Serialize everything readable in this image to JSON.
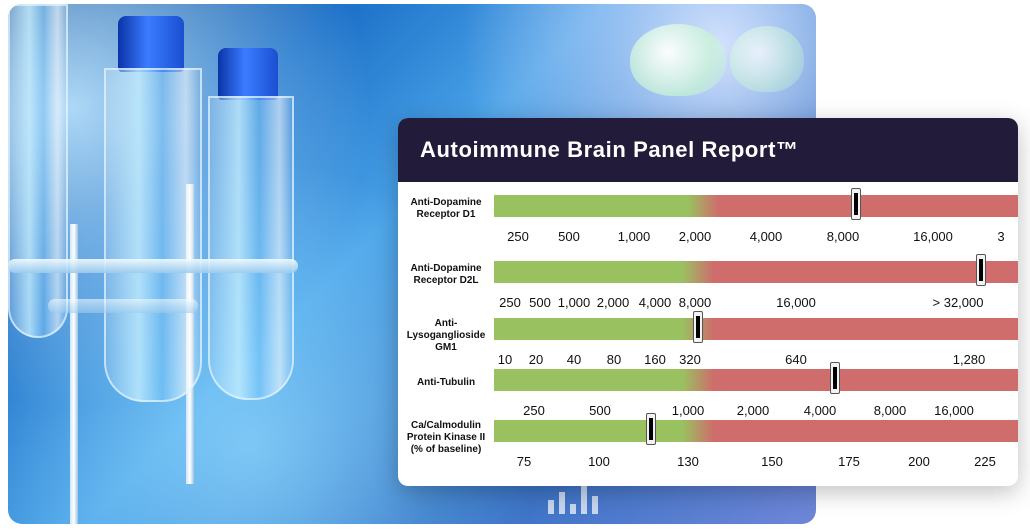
{
  "colors": {
    "normal": "#9ac160",
    "elevated": "#cf6c6c",
    "header_bg": "#231b3a"
  },
  "report": {
    "title": "Autoimmune Brain Panel Report™",
    "tests": [
      {
        "label": "Anti-Dopamine Receptor D1",
        "label_lines": [
          "Anti-Dopamine",
          "Receptor D1"
        ],
        "ticks": [
          "250",
          "500",
          "1,000",
          "2,000",
          "4,000",
          "8,000",
          "16,000",
          "3"
        ],
        "marker_fraction": 0.69,
        "normal_fraction": 0.4
      },
      {
        "label": "Anti-Dopamine Receptor D2L",
        "label_lines": [
          "Anti-Dopamine",
          "Receptor D2L"
        ],
        "ticks": [
          "250",
          "500",
          "1,000",
          "2,000",
          "4,000",
          "8,000",
          "16,000",
          "> 32,000"
        ],
        "marker_fraction": 0.93,
        "normal_fraction": 0.39
      },
      {
        "label": "Anti-Lysoganglioside GM1",
        "label_lines": [
          "Anti-",
          "Lysoganglioside",
          "GM1"
        ],
        "ticks": [
          "10",
          "20",
          "40",
          "80",
          "160",
          "320",
          "640",
          "1,280"
        ],
        "marker_fraction": 0.39,
        "normal_fraction": 0.39
      },
      {
        "label": "Anti-Tubulin",
        "label_lines": [
          "Anti-Tubulin"
        ],
        "ticks": [
          "250",
          "500",
          "1,000",
          "2,000",
          "4,000",
          "8,000",
          "16,000"
        ],
        "marker_fraction": 0.65,
        "normal_fraction": 0.39
      },
      {
        "label": "Ca/Calmodulin Protein Kinase II (% of baseline)",
        "label_lines": [
          "Ca/Calmodulin",
          "Protein Kinase II",
          "(% of baseline)"
        ],
        "ticks": [
          "75",
          "100",
          "130",
          "150",
          "175",
          "200",
          "225"
        ],
        "marker_fraction": 0.3,
        "normal_fraction": 0.39
      }
    ]
  }
}
